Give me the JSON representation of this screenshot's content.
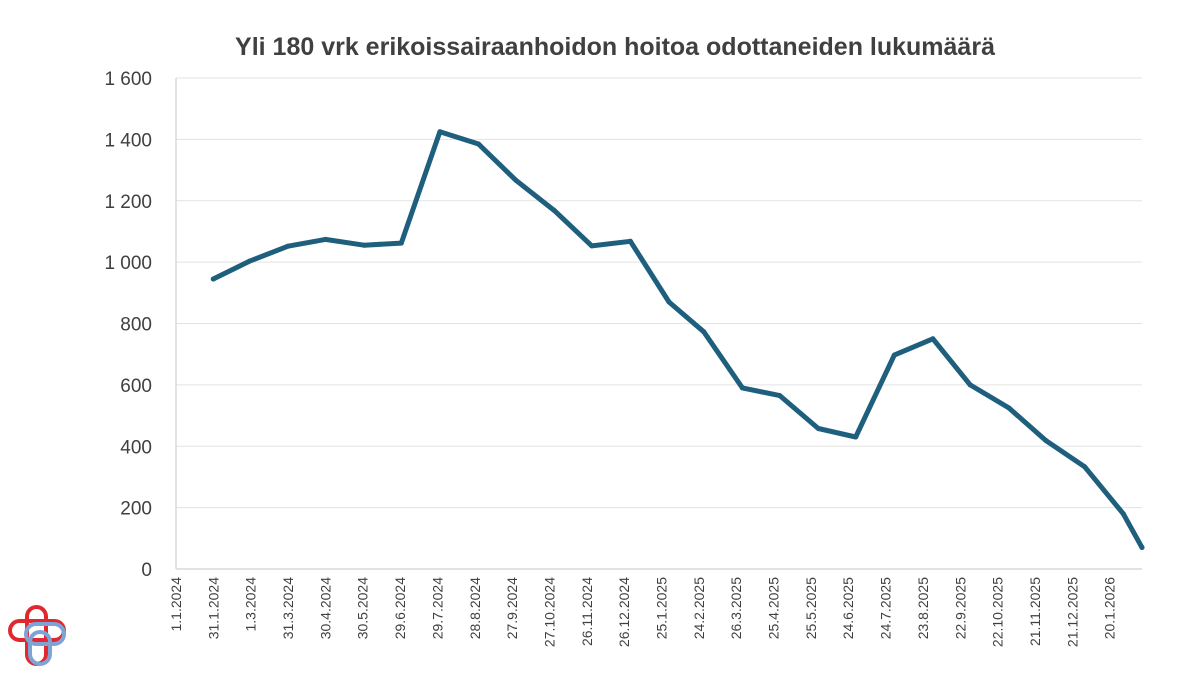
{
  "chart_data": {
    "type": "line",
    "title": "Yli 180 vrk erikoissairaanhoidon hoitoa odottaneiden lukumäärä",
    "xlabel": "",
    "ylabel": "",
    "ylim": [
      0,
      1600
    ],
    "yticks": [
      {
        "value": 0,
        "label": "0"
      },
      {
        "value": 200,
        "label": "200"
      },
      {
        "value": 400,
        "label": "400"
      },
      {
        "value": 600,
        "label": "600"
      },
      {
        "value": 800,
        "label": "800"
      },
      {
        "value": 1000,
        "label": "1 000"
      },
      {
        "value": 1200,
        "label": "1 200"
      },
      {
        "value": 1400,
        "label": "1 400"
      },
      {
        "value": 1600,
        "label": "1 600"
      }
    ],
    "x_tick_labels": [
      "1.1.2024",
      "31.1.2024",
      "1.3.2024",
      "31.3.2024",
      "30.4.2024",
      "30.5.2024",
      "29.6.2024",
      "29.7.2024",
      "28.8.2024",
      "27.9.2024",
      "27.10.2024",
      "26.11.2024",
      "26.12.2024",
      "25.1.2025",
      "24.2.2025",
      "26.3.2025",
      "25.4.2025",
      "25.5.2025",
      "24.6.2025",
      "24.7.2025",
      "23.8.2025",
      "22.9.2025",
      "22.10.2025",
      "21.11.2025",
      "21.12.2025",
      "20.1.2026"
    ],
    "x_start": "1.1.2024",
    "x_end": "15.2.2026",
    "grid": "horizontal",
    "series": [
      {
        "color": "#1f5f7e",
        "points": [
          {
            "x": "31.1.2024",
            "y": 945
          },
          {
            "x": "29.2.2024",
            "y": 1003
          },
          {
            "x": "31.3.2024",
            "y": 1052
          },
          {
            "x": "30.4.2024",
            "y": 1074
          },
          {
            "x": "31.5.2024",
            "y": 1055
          },
          {
            "x": "30.6.2024",
            "y": 1062
          },
          {
            "x": "31.7.2024",
            "y": 1425
          },
          {
            "x": "31.8.2024",
            "y": 1385
          },
          {
            "x": "30.9.2024",
            "y": 1267
          },
          {
            "x": "31.10.2024",
            "y": 1168
          },
          {
            "x": "30.11.2024",
            "y": 1053
          },
          {
            "x": "31.12.2024",
            "y": 1068
          },
          {
            "x": "31.1.2025",
            "y": 870
          },
          {
            "x": "28.2.2025",
            "y": 773
          },
          {
            "x": "31.3.2025",
            "y": 590
          },
          {
            "x": "30.4.2025",
            "y": 565
          },
          {
            "x": "31.5.2025",
            "y": 458
          },
          {
            "x": "30.6.2025",
            "y": 430
          },
          {
            "x": "31.7.2025",
            "y": 697
          },
          {
            "x": "31.8.2025",
            "y": 750
          },
          {
            "x": "30.9.2025",
            "y": 600
          },
          {
            "x": "31.10.2025",
            "y": 525
          },
          {
            "x": "30.11.2025",
            "y": 418
          },
          {
            "x": "31.12.2025",
            "y": 333
          },
          {
            "x": "31.1.2026",
            "y": 180
          },
          {
            "x": "15.2.2026",
            "y": 70
          }
        ]
      }
    ]
  },
  "logo": {
    "name": "logo-icon",
    "colors": [
      "#e0282e",
      "#7fa3d4"
    ]
  }
}
